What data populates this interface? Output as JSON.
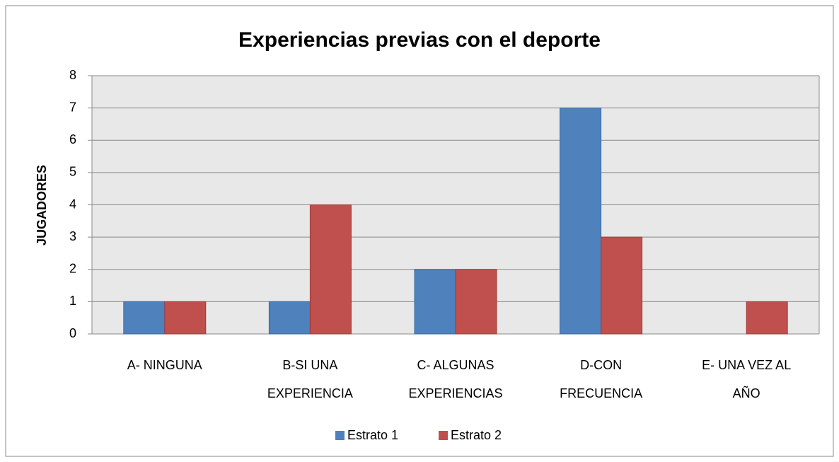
{
  "chart_data": {
    "type": "bar",
    "title": "Experiencias previas con el deporte",
    "ylabel": "JUGADORES",
    "categories": [
      "A- NINGUNA",
      "B-SI UNA EXPERIENCIA",
      "C- ALGUNAS EXPERIENCIAS",
      "D-CON FRECUENCIA",
      "E- UNA VEZ AL AÑO"
    ],
    "series": [
      {
        "name": "Estrato 1",
        "color": "#4f81bd",
        "values": [
          1,
          1,
          2,
          7,
          0
        ]
      },
      {
        "name": "Estrato 2",
        "color": "#c0504d",
        "values": [
          1,
          4,
          2,
          3,
          1
        ]
      }
    ],
    "ylim": [
      0,
      8
    ],
    "yticks": [
      0,
      1,
      2,
      3,
      4,
      5,
      6,
      7,
      8
    ],
    "grid": true,
    "legend": "bottom"
  }
}
